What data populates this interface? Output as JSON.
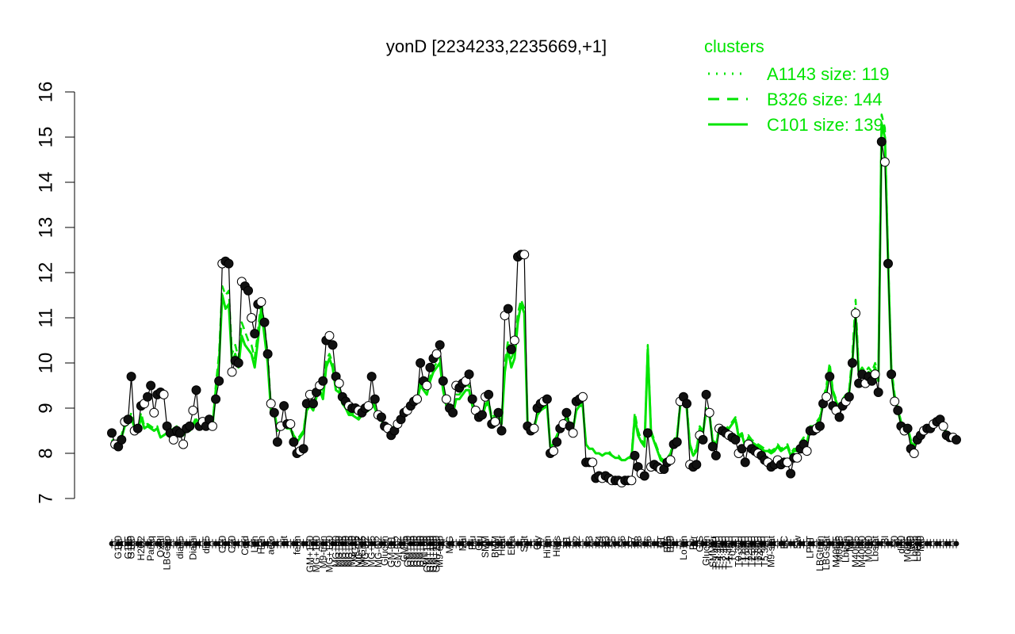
{
  "chart_data": {
    "type": "line",
    "title": "yonD [2234233,2235669,+1]",
    "ylim": [
      7,
      16
    ],
    "yticks": [
      7,
      8,
      9,
      10,
      11,
      12,
      13,
      14,
      15,
      16
    ],
    "legend": {
      "title": "clusters",
      "placement": "top-right",
      "entries": [
        {
          "label": "A1143 size: 119",
          "style": "dotted"
        },
        {
          "label": "B326 size: 144",
          "style": "dashed"
        },
        {
          "label": "C101 size: 139",
          "style": "solid"
        }
      ]
    },
    "colors": {
      "line": "#00e400",
      "point_fill_dark": "#111111",
      "point_fill_light": "#ffffff"
    },
    "x_labels": [
      {
        "i": 2,
        "t": "G150"
      },
      {
        "i": 5,
        "t": "G135"
      },
      {
        "i": 6,
        "t": "G180"
      },
      {
        "i": 9,
        "t": "H2O2"
      },
      {
        "i": 12,
        "t": "Paraq"
      },
      {
        "i": 15,
        "t": "Oxctl"
      },
      {
        "i": 17,
        "t": "LBGexp"
      },
      {
        "i": 21,
        "t": "dia15"
      },
      {
        "i": 25,
        "t": "Diami"
      },
      {
        "i": 29,
        "t": "dia5"
      },
      {
        "i": 34,
        "t": "C90"
      },
      {
        "i": 37,
        "t": "C30"
      },
      {
        "i": 41,
        "t": "Cold"
      },
      {
        "i": 44,
        "t": "LPh"
      },
      {
        "i": 46,
        "t": "HPh"
      },
      {
        "i": 49,
        "t": "aero"
      },
      {
        "i": 53,
        "t": "nit"
      },
      {
        "i": 57,
        "t": "ferm"
      },
      {
        "i": 61,
        "t": "GM+150"
      },
      {
        "i": 63,
        "t": "MG+150"
      },
      {
        "i": 65,
        "t": "M9-tran"
      },
      {
        "i": 67,
        "t": "MG+120"
      },
      {
        "i": 69,
        "t": "MG+90"
      },
      {
        "i": 70,
        "t": "MG+60"
      },
      {
        "i": 71,
        "t": "MG+45"
      },
      {
        "i": 72,
        "t": "MG+30"
      },
      {
        "i": 73,
        "t": "MG+15"
      },
      {
        "i": 74,
        "t": "MG+10"
      },
      {
        "i": 75,
        "t": "MG+5"
      },
      {
        "i": 76,
        "t": "MG-0.2"
      },
      {
        "i": 77,
        "t": "MG+t5"
      },
      {
        "i": 78,
        "t": "MG-0.2"
      },
      {
        "i": 80,
        "t": "MG+25"
      },
      {
        "i": 82,
        "t": "MG-0.2"
      },
      {
        "i": 84,
        "t": "Glucon"
      },
      {
        "i": 86,
        "t": "GM-0.1"
      },
      {
        "i": 88,
        "t": "GM-0.2"
      },
      {
        "i": 90,
        "t": "GM+5"
      },
      {
        "i": 91,
        "t": "GM+10"
      },
      {
        "i": 92,
        "t": "GM+15"
      },
      {
        "i": 93,
        "t": "GM+30"
      },
      {
        "i": 94,
        "t": "GM+45"
      },
      {
        "i": 95,
        "t": "GM+60"
      },
      {
        "i": 96,
        "t": "GM+90"
      },
      {
        "i": 97,
        "t": "GM+120"
      },
      {
        "i": 98,
        "t": "GM+150"
      },
      {
        "i": 99,
        "t": "GM+180"
      },
      {
        "i": 100,
        "t": "GM+240"
      },
      {
        "i": 101,
        "t": "M9-exp"
      },
      {
        "i": 104,
        "t": "M/G"
      },
      {
        "i": 108,
        "t": "Mal"
      },
      {
        "i": 111,
        "t": "Fru"
      },
      {
        "i": 113,
        "t": "Glu"
      },
      {
        "i": 115,
        "t": "SMM"
      },
      {
        "i": 118,
        "t": "BMM"
      },
      {
        "i": 120,
        "t": "Heat"
      },
      {
        "i": 123,
        "t": "Etha"
      },
      {
        "i": 127,
        "t": "Salt"
      },
      {
        "i": 131,
        "t": "Gly"
      },
      {
        "i": 134,
        "t": "HiTm"
      },
      {
        "i": 137,
        "t": "HiOs"
      },
      {
        "i": 140,
        "t": "S1"
      },
      {
        "i": 143,
        "t": "S2"
      },
      {
        "i": 147,
        "t": "S3"
      },
      {
        "i": 150,
        "t": "S4"
      },
      {
        "i": 152,
        "t": "S3"
      },
      {
        "i": 154,
        "t": "S5"
      },
      {
        "i": 157,
        "t": "S6"
      },
      {
        "i": 160,
        "t": "S7"
      },
      {
        "i": 162,
        "t": "S8"
      },
      {
        "i": 165,
        "t": "S6"
      },
      {
        "i": 169,
        "t": "BT"
      },
      {
        "i": 171,
        "t": "B36"
      },
      {
        "i": 172,
        "t": "B60"
      },
      {
        "i": 176,
        "t": "LoTm"
      },
      {
        "i": 179,
        "t": "Pyr"
      },
      {
        "i": 181,
        "t": "G/S"
      },
      {
        "i": 183,
        "t": "Glucon"
      },
      {
        "i": 185,
        "t": "SMMPr"
      },
      {
        "i": 186,
        "t": "T-5.40H"
      },
      {
        "i": 187,
        "t": "T-4.40H"
      },
      {
        "i": 188,
        "t": "T-3.40H"
      },
      {
        "i": 189,
        "t": "T-2.40H"
      },
      {
        "i": 190,
        "t": "T-1.40H"
      },
      {
        "i": 191,
        "t": "T0.0H"
      },
      {
        "i": 193,
        "t": "T0.30H"
      },
      {
        "i": 194,
        "t": "T1.0H"
      },
      {
        "i": 195,
        "t": "T1.30H"
      },
      {
        "i": 196,
        "t": "T2.0H"
      },
      {
        "i": 197,
        "t": "T2.30H"
      },
      {
        "i": 198,
        "t": "T3.0H"
      },
      {
        "i": 199,
        "t": "T3.30H"
      },
      {
        "i": 200,
        "t": "T4.0H"
      },
      {
        "i": 201,
        "t": "T5.30H"
      },
      {
        "i": 203,
        "t": "M9-stat"
      },
      {
        "i": 207,
        "t": "BC"
      },
      {
        "i": 211,
        "t": "Sw"
      },
      {
        "i": 215,
        "t": "LPhT"
      },
      {
        "i": 218,
        "t": "LBGtran"
      },
      {
        "i": 220,
        "t": "LBGstat"
      },
      {
        "i": 223,
        "t": "M40t45"
      },
      {
        "i": 224,
        "t": "M0t45"
      },
      {
        "i": 226,
        "t": "Lbtran"
      },
      {
        "i": 227,
        "t": "Mt0"
      },
      {
        "i": 229,
        "t": "M40t45"
      },
      {
        "i": 231,
        "t": "M40t90"
      },
      {
        "i": 233,
        "t": "M0t90"
      },
      {
        "i": 235,
        "t": "Lbstat"
      },
      {
        "i": 238,
        "t": "Bl"
      },
      {
        "i": 241,
        "t": "S0"
      },
      {
        "i": 243,
        "t": "dia0"
      },
      {
        "i": 245,
        "t": "M0t45"
      },
      {
        "i": 246,
        "t": "Mt0"
      },
      {
        "i": 247,
        "t": "Lbexp"
      },
      {
        "i": 248,
        "t": "Lbexp"
      },
      {
        "i": 249,
        "t": "Mt0"
      }
    ],
    "series": [
      {
        "values": [
          8.45,
          8.2,
          8.15,
          8.3,
          8.7,
          8.75,
          9.7,
          8.5,
          8.55,
          9.05,
          9.1,
          9.25,
          9.5,
          8.9,
          9.3,
          9.35,
          9.3,
          8.6,
          8.45,
          8.3,
          8.5,
          8.45,
          8.2,
          8.55,
          8.6,
          8.95,
          9.4,
          8.6,
          8.7,
          8.6,
          8.75,
          8.6,
          9.2,
          9.6,
          12.2,
          12.25,
          12.2,
          9.8,
          10.05,
          10.0,
          11.8,
          11.7,
          11.6,
          11.0,
          10.65,
          11.3,
          11.35,
          10.9,
          10.2,
          9.1,
          8.9,
          8.25,
          8.6,
          9.05,
          8.65,
          8.65,
          8.25,
          8.0,
          8.05,
          8.1,
          9.1,
          9.3,
          9.1,
          9.35,
          9.5,
          9.6,
          10.5,
          10.6,
          10.4,
          9.7,
          9.55,
          9.25,
          9.15,
          9.05,
          9.0,
          9.0,
          8.95,
          8.9,
          9.0,
          9.05,
          9.7,
          9.2,
          8.85,
          8.8,
          8.6,
          8.55,
          8.4,
          8.5,
          8.65,
          8.75,
          8.9,
          8.95,
          9.05,
          9.15,
          9.2,
          10.0,
          9.6,
          9.5,
          9.9,
          10.1,
          10.2,
          10.4,
          9.6,
          9.2,
          9.0,
          8.9,
          9.5,
          9.45,
          9.55,
          9.6,
          9.75,
          9.2,
          8.95,
          8.8,
          8.85,
          9.25,
          9.3,
          8.65,
          8.7,
          8.9,
          8.5,
          11.05,
          11.2,
          10.3,
          10.5,
          12.35,
          12.4,
          12.4,
          8.6,
          8.5,
          8.55,
          9.0,
          9.1,
          9.15,
          9.2,
          8.0,
          8.05,
          8.25,
          8.55,
          8.65,
          8.9,
          8.6,
          8.45,
          9.15,
          9.2,
          9.25,
          7.8,
          7.8,
          7.8,
          7.45,
          7.5,
          7.45,
          7.5,
          7.45,
          7.4,
          7.4,
          7.4,
          7.35,
          7.4,
          7.4,
          7.4,
          7.95,
          7.7,
          7.55,
          7.5,
          8.45,
          7.7,
          7.75,
          7.7,
          7.65,
          7.65,
          7.8,
          7.85,
          8.2,
          8.25,
          9.15,
          9.25,
          9.1,
          7.75,
          7.7,
          7.75,
          8.4,
          8.3,
          9.3,
          8.9,
          8.15,
          7.95,
          8.55,
          8.5,
          8.45,
          8.4,
          8.35,
          8.3,
          8.0,
          8.1,
          7.8,
          8.2,
          8.1,
          8.05,
          8.0,
          7.95,
          7.85,
          7.8,
          7.7,
          7.75,
          7.85,
          7.75,
          7.8,
          7.8,
          7.55,
          7.9,
          7.9,
          8.1,
          8.2,
          8.05,
          8.5,
          8.5,
          8.55,
          8.6,
          9.1,
          9.25,
          9.7,
          9.05,
          8.95,
          8.8,
          9.05,
          9.15,
          9.25,
          10.0,
          11.1,
          9.55,
          9.75,
          9.55,
          9.7,
          9.6,
          9.75,
          9.35,
          14.9,
          14.45,
          12.2,
          9.75,
          9.15,
          8.95,
          8.6,
          8.5,
          8.55,
          8.1,
          8.0,
          8.3,
          8.4,
          8.5,
          8.55,
          8.55,
          8.65,
          8.7,
          8.75,
          8.6,
          8.4,
          8.35,
          8.35,
          8.3
        ]
      },
      {
        "values": [
          8.3,
          8.2,
          8.3,
          8.4,
          8.7,
          8.65,
          8.9,
          8.55,
          8.5,
          8.9,
          8.6,
          8.65,
          8.6,
          8.55,
          8.6,
          8.35,
          8.4,
          8.45,
          8.5,
          8.55,
          8.6,
          8.5,
          8.4,
          8.6,
          8.5,
          8.65,
          8.8,
          8.7,
          8.6,
          8.6,
          8.75,
          8.6,
          9.5,
          10.2,
          11.7,
          11.5,
          11.6,
          10.2,
          10.4,
          10.1,
          10.9,
          10.7,
          10.5,
          10.4,
          10.1,
          10.7,
          11.4,
          10.8,
          10.2,
          9.0,
          8.95,
          8.55,
          8.7,
          8.65,
          8.6,
          8.6,
          8.4,
          8.3,
          8.4,
          8.5,
          9.0,
          9.1,
          9.0,
          9.3,
          9.5,
          9.3,
          10.05,
          10.2,
          10.0,
          9.5,
          9.45,
          9.2,
          9.05,
          8.9,
          8.9,
          8.85,
          8.8,
          8.9,
          8.95,
          9.0,
          9.2,
          9.05,
          8.85,
          8.8,
          8.6,
          8.6,
          8.55,
          8.6,
          8.7,
          8.75,
          8.9,
          8.95,
          9.0,
          9.1,
          9.2,
          9.6,
          9.5,
          9.4,
          9.7,
          9.9,
          10.0,
          10.1,
          9.5,
          9.1,
          9.0,
          8.9,
          9.3,
          9.3,
          9.4,
          9.5,
          9.5,
          9.1,
          8.9,
          8.8,
          8.85,
          9.1,
          9.15,
          8.8,
          8.85,
          8.9,
          8.7,
          10.0,
          10.5,
          10.1,
          10.3,
          11.1,
          11.4,
          11.2,
          8.7,
          8.65,
          8.6,
          8.9,
          9.0,
          9.05,
          9.1,
          8.2,
          8.25,
          8.4,
          8.6,
          8.7,
          8.85,
          8.7,
          8.6,
          9.0,
          9.1,
          9.1,
          8.2,
          8.1,
          8.1,
          8.0,
          8.0,
          7.95,
          8.0,
          8.05,
          7.95,
          7.9,
          7.95,
          7.85,
          7.85,
          7.9,
          7.95,
          8.9,
          8.5,
          8.3,
          8.2,
          10.4,
          8.5,
          8.3,
          8.1,
          7.9,
          7.85,
          7.9,
          8.0,
          8.3,
          8.4,
          9.1,
          9.3,
          9.1,
          8.2,
          8.0,
          8.1,
          8.6,
          8.5,
          9.0,
          8.9,
          8.3,
          8.2,
          8.6,
          8.55,
          8.55,
          8.6,
          8.7,
          8.8,
          8.4,
          8.45,
          8.2,
          8.4,
          8.3,
          8.25,
          8.2,
          8.15,
          8.1,
          8.1,
          8.05,
          8.1,
          8.2,
          8.1,
          8.15,
          8.2,
          8.0,
          8.1,
          8.1,
          8.25,
          8.35,
          8.25,
          8.6,
          8.6,
          8.7,
          8.8,
          9.2,
          9.5,
          10.0,
          9.4,
          9.2,
          9.0,
          9.2,
          9.3,
          9.4,
          10.2,
          11.4,
          9.8,
          9.9,
          9.8,
          9.9,
          9.8,
          10.0,
          9.7,
          15.5,
          15.2,
          12.3,
          9.9,
          9.3,
          9.0,
          8.7,
          8.55,
          8.6,
          8.3,
          8.2,
          8.4,
          8.5,
          8.55,
          8.6,
          8.6,
          8.7,
          8.75,
          8.8,
          8.65,
          8.45,
          8.4,
          8.4,
          8.35
        ]
      },
      {
        "values": [
          8.3,
          8.25,
          8.3,
          8.35,
          8.6,
          8.65,
          8.8,
          8.55,
          8.5,
          8.8,
          8.55,
          8.6,
          8.55,
          8.5,
          8.55,
          8.35,
          8.4,
          8.45,
          8.5,
          8.5,
          8.55,
          8.5,
          8.4,
          8.55,
          8.5,
          8.6,
          8.75,
          8.65,
          8.6,
          8.6,
          8.7,
          8.6,
          9.4,
          10.0,
          11.5,
          11.2,
          11.3,
          10.0,
          10.2,
          9.9,
          10.6,
          10.4,
          10.3,
          10.2,
          9.9,
          10.5,
          11.2,
          10.6,
          10.0,
          8.95,
          8.9,
          8.5,
          8.65,
          8.6,
          8.55,
          8.55,
          8.35,
          8.25,
          8.35,
          8.45,
          8.95,
          9.05,
          8.95,
          9.25,
          9.4,
          9.2,
          9.9,
          10.1,
          9.9,
          9.4,
          9.35,
          9.1,
          9.0,
          8.85,
          8.85,
          8.8,
          8.75,
          8.85,
          8.9,
          8.95,
          9.1,
          9.0,
          8.8,
          8.75,
          8.55,
          8.55,
          8.5,
          8.55,
          8.65,
          8.7,
          8.85,
          8.9,
          8.95,
          9.05,
          9.15,
          9.5,
          9.4,
          9.3,
          9.6,
          9.8,
          9.9,
          10.0,
          9.4,
          9.05,
          8.95,
          8.85,
          9.2,
          9.2,
          9.3,
          9.4,
          9.4,
          9.05,
          8.85,
          8.75,
          8.8,
          9.05,
          9.1,
          8.75,
          8.8,
          8.85,
          8.65,
          9.8,
          10.3,
          9.9,
          10.1,
          10.9,
          11.3,
          11.1,
          8.65,
          8.6,
          8.55,
          8.85,
          8.95,
          9.0,
          9.05,
          8.15,
          8.2,
          8.35,
          8.55,
          8.65,
          8.8,
          8.65,
          8.55,
          8.95,
          9.05,
          9.05,
          8.2,
          8.1,
          8.1,
          8.0,
          8.0,
          7.95,
          8.0,
          8.0,
          7.95,
          7.9,
          7.9,
          7.85,
          7.85,
          7.9,
          7.9,
          8.8,
          8.4,
          8.25,
          8.15,
          10.3,
          8.45,
          8.25,
          8.05,
          7.85,
          7.8,
          7.85,
          7.95,
          8.25,
          8.35,
          9.05,
          9.2,
          9.0,
          8.15,
          7.95,
          8.05,
          8.55,
          8.45,
          8.95,
          8.85,
          8.25,
          8.15,
          8.55,
          8.5,
          8.5,
          8.55,
          8.65,
          8.75,
          8.35,
          8.4,
          8.15,
          8.35,
          8.25,
          8.2,
          8.15,
          8.1,
          8.05,
          8.05,
          8.0,
          8.05,
          8.15,
          8.05,
          8.1,
          8.15,
          7.95,
          8.05,
          8.05,
          8.2,
          8.3,
          8.2,
          8.55,
          8.55,
          8.65,
          8.75,
          9.1,
          9.4,
          9.9,
          9.35,
          9.15,
          8.95,
          9.15,
          9.25,
          9.35,
          10.0,
          11.1,
          9.7,
          9.8,
          9.7,
          9.8,
          9.7,
          9.9,
          9.6,
          15.3,
          15.0,
          12.2,
          9.8,
          9.2,
          8.95,
          8.65,
          8.5,
          8.55,
          8.25,
          8.15,
          8.35,
          8.45,
          8.5,
          8.55,
          8.55,
          8.65,
          8.7,
          8.75,
          8.6,
          8.4,
          8.35,
          8.35,
          8.3
        ]
      }
    ]
  }
}
